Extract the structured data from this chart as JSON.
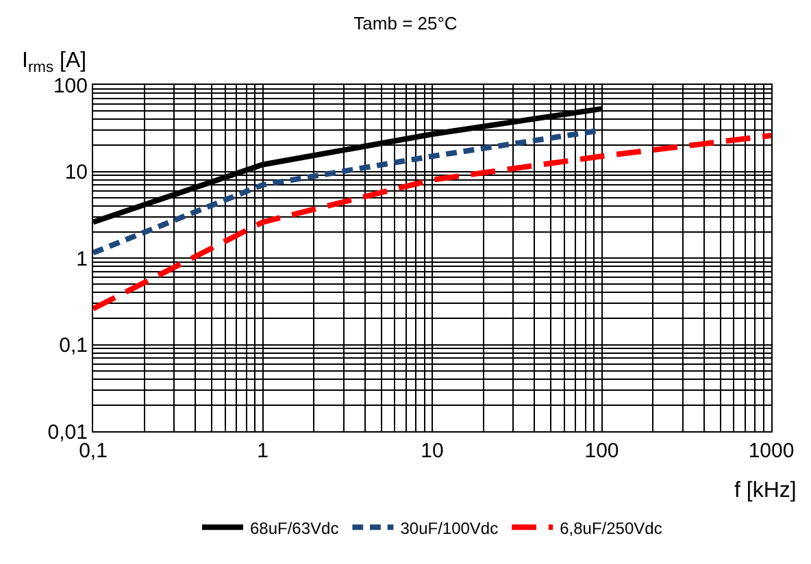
{
  "chart_data": {
    "type": "line",
    "title": "Tamb = 25°C",
    "xlabel": "f [kHz]",
    "ylabel": "I$_{rms}$ [A]",
    "log": "xy",
    "grid": true,
    "legend": "bottom",
    "marker": "none",
    "xlim": [
      0.1,
      1000
    ],
    "ylim": [
      0.01,
      100
    ],
    "xticks": [
      {
        "value": 0.1,
        "label": "0,1"
      },
      1,
      10,
      100,
      1000
    ],
    "yticks": [
      {
        "value": 0.01,
        "label": "0,01"
      },
      {
        "value": 0.1,
        "label": "0,1"
      },
      1,
      10,
      100
    ],
    "series": [
      {
        "name": "68uF/63Vdc",
        "color": "#000000",
        "line_style": "solid",
        "x": [
          0.1,
          1,
          10,
          100
        ],
        "values": [
          2.6,
          12,
          27,
          53
        ]
      },
      {
        "name": "30uF/100Vdc",
        "color": "#1f497d",
        "line_style": "dashed",
        "x": [
          0.1,
          1,
          10,
          100
        ],
        "values": [
          1.15,
          7,
          15,
          30
        ]
      },
      {
        "name": "6,8uF/250Vdc",
        "color": "#ff0000",
        "line_style": "longdash",
        "x": [
          0.1,
          1,
          10,
          100,
          1000
        ],
        "values": [
          0.26,
          2.6,
          8,
          15,
          26
        ]
      }
    ]
  }
}
